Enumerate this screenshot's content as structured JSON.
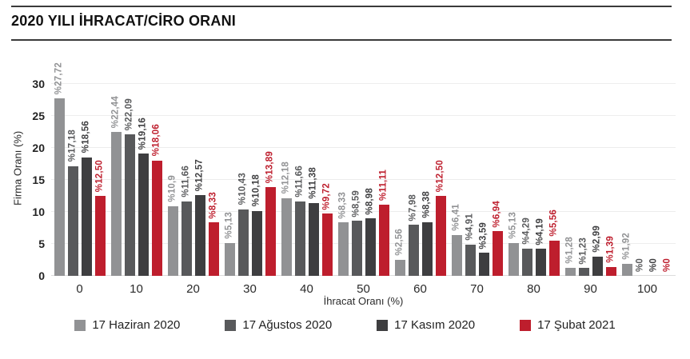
{
  "title": "2020 YILI İHRACAT/CİRO ORANI",
  "chart_data": {
    "type": "bar",
    "title": "2020 YILI İHRACAT/CİRO ORANI",
    "xlabel": "İhracat Oranı (%)",
    "ylabel": "Firma Oranı (%)",
    "categories": [
      "0",
      "10",
      "20",
      "30",
      "40",
      "50",
      "60",
      "70",
      "80",
      "90",
      "100"
    ],
    "yticks": [
      0,
      5,
      10,
      15,
      20,
      25,
      30
    ],
    "ylim": [
      0,
      33.75
    ],
    "grid": true,
    "legend_position": "bottom",
    "series": [
      {
        "name": "17 Haziran 2020",
        "color": "#919294",
        "values": [
          27.72,
          22.44,
          10.9,
          5.13,
          12.18,
          8.33,
          2.56,
          6.41,
          5.13,
          1.28,
          1.92
        ],
        "labels": [
          "%27,72",
          "%22,44",
          "%10,9",
          "%5,13",
          "%12,18",
          "%8,33",
          "%2,56",
          "%6,41",
          "%5,13",
          "%1,28",
          "%1,92"
        ]
      },
      {
        "name": "17 Ağustos 2020",
        "color": "#58595b",
        "values": [
          17.18,
          22.09,
          11.66,
          10.43,
          11.66,
          8.59,
          7.98,
          4.91,
          4.29,
          1.23,
          0
        ],
        "labels": [
          "%17,18",
          "%22,09",
          "%11,66",
          "%10,43",
          "%11,66",
          "%8,59",
          "%7,98",
          "%4,91",
          "%4,29",
          "%1,23",
          "%0"
        ]
      },
      {
        "name": "17 Kasım 2020",
        "color": "#3e3e40",
        "values": [
          18.56,
          19.16,
          12.57,
          10.18,
          11.38,
          8.98,
          8.38,
          3.59,
          4.19,
          2.99,
          0
        ],
        "labels": [
          "%18,56",
          "%19,16",
          "%12,57",
          "%10,18",
          "%11,38",
          "%8,98",
          "%8,38",
          "%3,59",
          "%4,19",
          "%2,99",
          "%0"
        ]
      },
      {
        "name": "17 Şubat 2021",
        "color": "#be1e2d",
        "values": [
          12.5,
          18.06,
          8.33,
          13.89,
          9.72,
          11.11,
          12.5,
          6.94,
          5.56,
          1.39,
          0
        ],
        "labels": [
          "%12,50",
          "%18,06",
          "%8,33",
          "%13,89",
          "%9,72",
          "%11,11",
          "%12,50",
          "%6,94",
          "%5,56",
          "%1,39",
          "%0"
        ]
      }
    ]
  }
}
